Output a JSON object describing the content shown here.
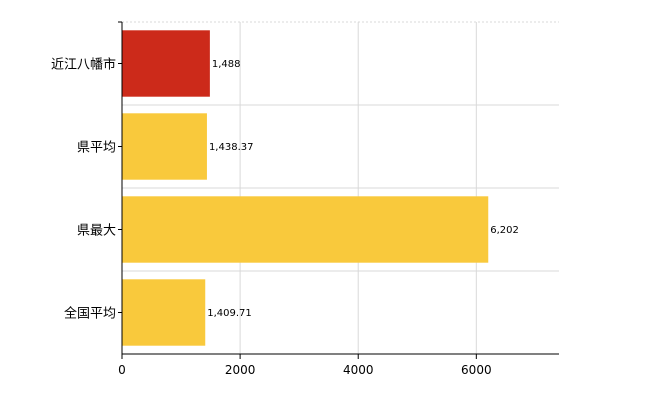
{
  "chart_data": {
    "type": "bar",
    "orientation": "horizontal",
    "categories": [
      "近江八幡市",
      "県平均",
      "県最大",
      "全国平均"
    ],
    "values": [
      1488,
      1438.37,
      6202,
      1409.71
    ],
    "value_labels": [
      "1,488",
      "1,438.37",
      "6,202",
      "1,409.71"
    ],
    "bar_colors": [
      "#cc2a1a",
      "#f9c93c",
      "#f9c93c",
      "#f9c93c"
    ],
    "xlim": [
      0,
      7400
    ],
    "x_ticks": [
      0,
      2000,
      4000,
      6000
    ],
    "x_tick_labels": [
      "0",
      "2000",
      "4000",
      "6000"
    ],
    "grid": true,
    "grid_color": "#d9d9d9",
    "legend": "none"
  }
}
